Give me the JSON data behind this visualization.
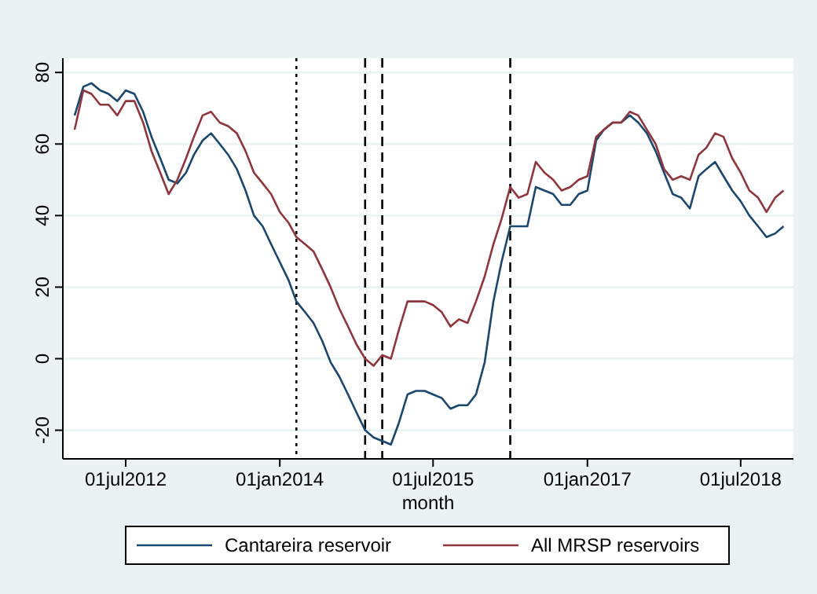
{
  "chart_data": {
    "type": "line",
    "xlabel": "month",
    "x": [
      "2012-01",
      "2012-02",
      "2012-03",
      "2012-04",
      "2012-05",
      "2012-06",
      "2012-07",
      "2012-08",
      "2012-09",
      "2012-10",
      "2012-11",
      "2012-12",
      "2013-01",
      "2013-02",
      "2013-03",
      "2013-04",
      "2013-05",
      "2013-06",
      "2013-07",
      "2013-08",
      "2013-09",
      "2013-10",
      "2013-11",
      "2013-12",
      "2014-01",
      "2014-02",
      "2014-03",
      "2014-04",
      "2014-05",
      "2014-06",
      "2014-07",
      "2014-08",
      "2014-09",
      "2014-10",
      "2014-11",
      "2014-12",
      "2015-01",
      "2015-02",
      "2015-03",
      "2015-04",
      "2015-05",
      "2015-06",
      "2015-07",
      "2015-08",
      "2015-09",
      "2015-10",
      "2015-11",
      "2015-12",
      "2016-01",
      "2016-02",
      "2016-03",
      "2016-04",
      "2016-05",
      "2016-06",
      "2016-07",
      "2016-08",
      "2016-09",
      "2016-10",
      "2016-11",
      "2016-12",
      "2017-01",
      "2017-02",
      "2017-03",
      "2017-04",
      "2017-05",
      "2017-06",
      "2017-07",
      "2017-08",
      "2017-09",
      "2017-10",
      "2017-11",
      "2017-12",
      "2018-01",
      "2018-02",
      "2018-03",
      "2018-04",
      "2018-05",
      "2018-06",
      "2018-07",
      "2018-08",
      "2018-09",
      "2018-10",
      "2018-11",
      "2018-12"
    ],
    "series": [
      {
        "name": "Cantareira reservoir",
        "color": "#1a476f",
        "values": [
          68,
          76,
          77,
          75,
          74,
          72,
          75,
          74,
          69,
          62,
          56,
          50,
          49,
          52,
          57,
          61,
          63,
          60,
          57,
          53,
          47,
          40,
          37,
          32,
          27,
          22,
          16,
          13,
          10,
          5,
          -1,
          -5,
          -10,
          -15,
          -20,
          -22,
          -23,
          -24,
          -18,
          -10,
          -9,
          -9,
          -10,
          -11,
          -14,
          -13,
          -13,
          -10,
          -1,
          16,
          27,
          37,
          37,
          37,
          48,
          47,
          46,
          43,
          43,
          46,
          47,
          61,
          64,
          66,
          66,
          68,
          66,
          63,
          58,
          52,
          46,
          45,
          42,
          51,
          53,
          55,
          51,
          47,
          44,
          40,
          37,
          34,
          35,
          37
        ]
      },
      {
        "name": "All MRSP reservoirs",
        "color": "#90353b",
        "values": [
          64,
          75,
          74,
          71,
          71,
          68,
          72,
          72,
          66,
          58,
          52,
          46,
          50,
          56,
          62,
          68,
          69,
          66,
          65,
          63,
          58,
          52,
          49,
          46,
          41,
          38,
          34,
          32,
          30,
          25,
          20,
          14,
          9,
          4,
          0,
          -2,
          1,
          0,
          8,
          16,
          16,
          16,
          15,
          13,
          9,
          11,
          10,
          16,
          23,
          32,
          39,
          48,
          45,
          46,
          55,
          52,
          50,
          47,
          48,
          50,
          51,
          62,
          64,
          66,
          66,
          69,
          68,
          64,
          60,
          53,
          50,
          51,
          50,
          57,
          59,
          63,
          62,
          56,
          52,
          47,
          45,
          41,
          45,
          47
        ]
      }
    ],
    "xlim": [
      "2011-11-20",
      "2019-01-05"
    ],
    "xticks": [
      {
        "value": "2012-07-01",
        "label": "01jul2012"
      },
      {
        "value": "2014-01-01",
        "label": "01jan2014"
      },
      {
        "value": "2015-07-01",
        "label": "01jul2015"
      },
      {
        "value": "2017-01-01",
        "label": "01jan2017"
      },
      {
        "value": "2018-07-01",
        "label": "01jul2018"
      }
    ],
    "ylim": [
      -28,
      84
    ],
    "yticks": [
      -20,
      0,
      20,
      40,
      60,
      80
    ],
    "grid": "y",
    "legend": "bottom",
    "ref_lines": [
      {
        "axis": "x",
        "value": "2014-03",
        "color": "#000000",
        "line_style": "dotted"
      },
      {
        "axis": "x",
        "value": "2014-11",
        "color": "#000000",
        "line_style": "dashed"
      },
      {
        "axis": "x",
        "value": "2015-01",
        "color": "#000000",
        "line_style": "dashed"
      },
      {
        "axis": "x",
        "value": "2016-04",
        "color": "#000000",
        "line_style": "dashed"
      }
    ]
  }
}
